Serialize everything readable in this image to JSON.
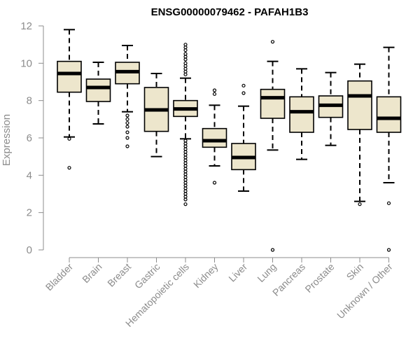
{
  "chart_data": {
    "type": "boxplot",
    "title": "ENSG00000079462 - PAFAH1B3",
    "xlabel": "",
    "ylabel": "Expression",
    "ylim": [
      0,
      12
    ],
    "yticks": [
      0,
      2,
      4,
      6,
      8,
      10,
      12
    ],
    "box_fill": "#ede6cc",
    "line_color": "#000000",
    "axis_color": "#8c8c8c",
    "categories": [
      "Bladder",
      "Brain",
      "Breast",
      "Gastric",
      "Hematopoietic cells",
      "Kidney",
      "Liver",
      "Lung",
      "Pancreas",
      "Prostate",
      "Skin",
      "Unknown / Other"
    ],
    "boxes": [
      {
        "name": "Bladder",
        "whisker_low": 6.05,
        "q1": 8.45,
        "median": 9.45,
        "q3": 10.1,
        "whisker_high": 11.8,
        "outliers": [
          5.95,
          4.4
        ]
      },
      {
        "name": "Brain",
        "whisker_low": 6.75,
        "q1": 7.95,
        "median": 8.7,
        "q3": 9.15,
        "whisker_high": 10.05,
        "outliers": []
      },
      {
        "name": "Breast",
        "whisker_low": 7.4,
        "q1": 8.9,
        "median": 9.55,
        "q3": 10.05,
        "whisker_high": 10.95,
        "outliers": [
          7.2,
          7.0,
          6.8,
          6.6,
          6.3,
          6.0,
          5.55
        ]
      },
      {
        "name": "Gastric",
        "whisker_low": 5.0,
        "q1": 6.35,
        "median": 7.5,
        "q3": 8.7,
        "whisker_high": 9.45,
        "outliers": []
      },
      {
        "name": "Hematopoietic cells",
        "whisker_low": 5.95,
        "q1": 7.15,
        "median": 7.55,
        "q3": 8.0,
        "whisker_high": 9.2,
        "outliers": [
          11.0,
          10.85,
          10.7,
          10.5,
          10.35,
          10.2,
          10.0,
          9.85,
          9.7,
          9.55,
          9.4,
          5.85,
          5.7,
          5.55,
          5.4,
          5.25,
          5.1,
          4.95,
          4.8,
          4.65,
          4.5,
          4.35,
          4.2,
          4.05,
          3.9,
          3.75,
          3.6,
          3.45,
          3.3,
          3.15,
          3.0,
          2.85,
          2.7,
          2.45
        ]
      },
      {
        "name": "Kidney",
        "whisker_low": 4.5,
        "q1": 5.5,
        "median": 5.85,
        "q3": 6.5,
        "whisker_high": 7.75,
        "outliers": [
          8.55,
          8.35,
          3.6
        ]
      },
      {
        "name": "Liver",
        "whisker_low": 3.15,
        "q1": 4.3,
        "median": 4.95,
        "q3": 5.7,
        "whisker_high": 7.7,
        "outliers": [
          8.8,
          8.4
        ]
      },
      {
        "name": "Lung",
        "whisker_low": 5.35,
        "q1": 7.05,
        "median": 8.15,
        "q3": 8.6,
        "whisker_high": 10.1,
        "outliers": [
          11.15,
          0.0
        ]
      },
      {
        "name": "Pancreas",
        "whisker_low": 4.85,
        "q1": 6.3,
        "median": 7.4,
        "q3": 8.2,
        "whisker_high": 9.7,
        "outliers": []
      },
      {
        "name": "Prostate",
        "whisker_low": 5.6,
        "q1": 7.1,
        "median": 7.75,
        "q3": 8.25,
        "whisker_high": 9.5,
        "outliers": []
      },
      {
        "name": "Skin",
        "whisker_low": 2.6,
        "q1": 6.45,
        "median": 8.25,
        "q3": 9.05,
        "whisker_high": 9.95,
        "outliers": [
          2.45
        ]
      },
      {
        "name": "Unknown / Other",
        "whisker_low": 3.6,
        "q1": 6.3,
        "median": 7.05,
        "q3": 8.2,
        "whisker_high": 10.85,
        "outliers": [
          2.5,
          0.0
        ]
      }
    ]
  }
}
